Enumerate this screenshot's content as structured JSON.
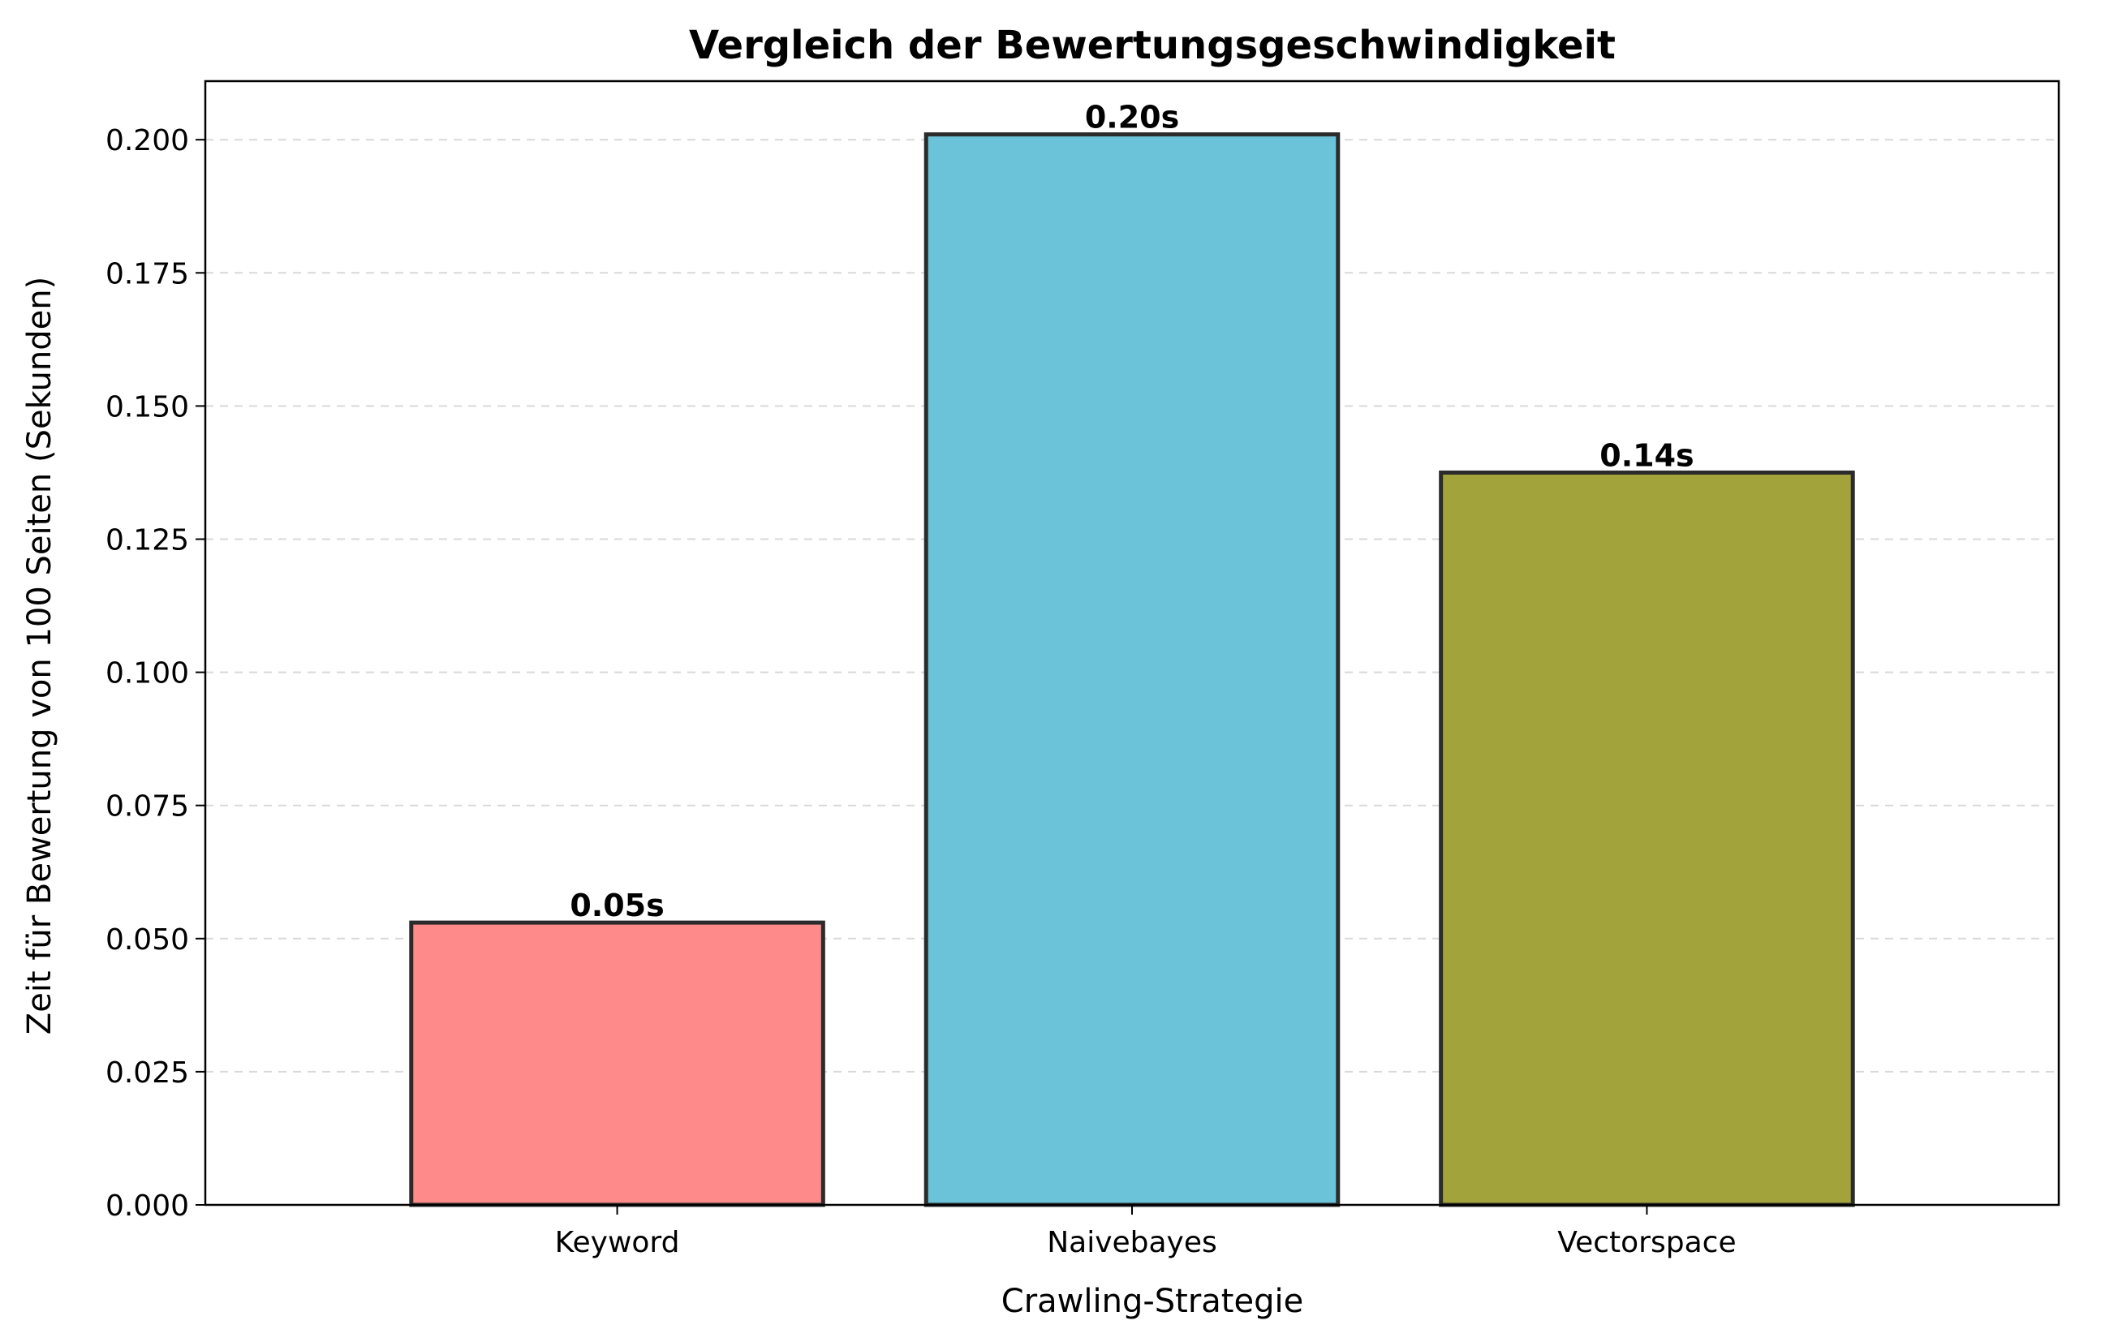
{
  "chart_data": {
    "type": "bar",
    "title": "Vergleich der Bewertungsgeschwindigkeit",
    "xlabel": "Crawling-Strategie",
    "ylabel": "Zeit für Bewertung von 100 Seiten (Sekunden)",
    "categories": [
      "Keyword",
      "Naivebayes",
      "Vectorspace"
    ],
    "values": [
      0.053,
      0.201,
      0.1375
    ],
    "data_labels": [
      "0.05s",
      "0.20s",
      "0.14s"
    ],
    "colors": [
      "#ff8a8a",
      "#6ac3d9",
      "#a2a33a"
    ],
    "edge_color": "#2b2b2b",
    "ylim": [
      0,
      0.211
    ],
    "yticks": [
      0.0,
      0.025,
      0.05,
      0.075,
      0.1,
      0.125,
      0.15,
      0.175,
      0.2
    ],
    "ytick_labels": [
      "0.000",
      "0.025",
      "0.050",
      "0.075",
      "0.100",
      "0.125",
      "0.150",
      "0.175",
      "0.200"
    ],
    "grid": "y-dashed",
    "legend": "none"
  }
}
